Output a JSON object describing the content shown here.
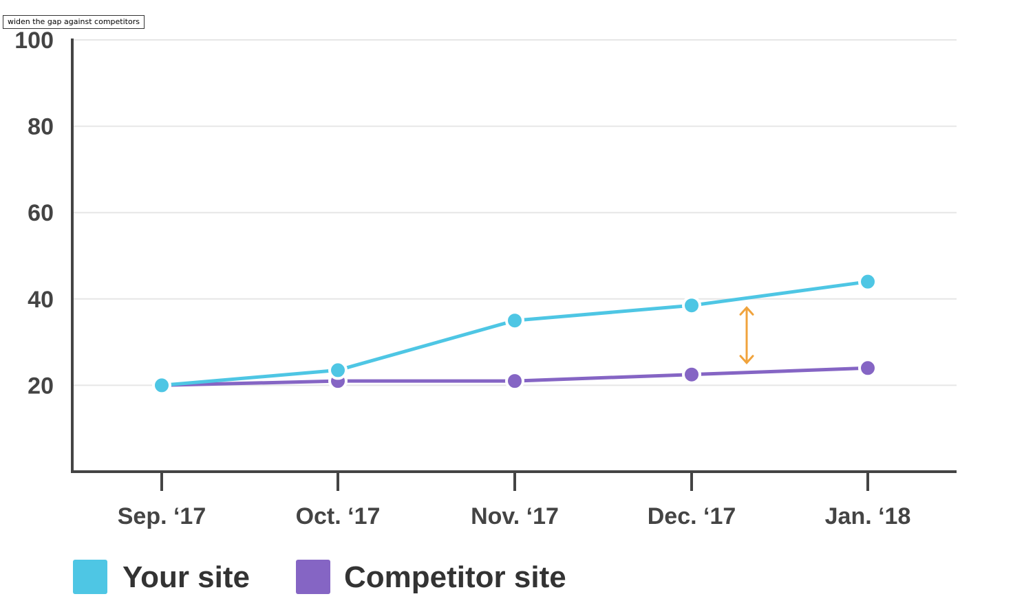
{
  "tooltip": {
    "text": "widen the gap against competitors"
  },
  "colors": {
    "your_site": "#4ec6e4",
    "competitor_site": "#8565c4",
    "gap_arrow": "#f0a33c",
    "axis": "#444444",
    "grid": "#e6e6e6"
  },
  "chart_data": {
    "type": "line",
    "title": "",
    "xlabel": "",
    "ylabel": "",
    "categories": [
      "Sep. ‘17",
      "Oct. ‘17",
      "Nov. ‘17",
      "Dec. ‘17",
      "Jan. ‘18"
    ],
    "y_ticks": [
      20,
      40,
      60,
      80,
      100
    ],
    "ylim": [
      0,
      100
    ],
    "grid": true,
    "legend_position": "bottom-left",
    "series": [
      {
        "name": "Your site",
        "color": "#4ec6e4",
        "values": [
          20,
          23.5,
          35,
          38.5,
          44
        ]
      },
      {
        "name": "Competitor site",
        "color": "#8565c4",
        "values": [
          20,
          21,
          21,
          22.5,
          24
        ]
      }
    ],
    "annotations": [
      {
        "type": "double-arrow",
        "between_categories": [
          "Dec. ‘17",
          "Jan. ‘18"
        ],
        "color": "#f0a33c",
        "icon": "double-arrow-icon"
      }
    ]
  }
}
